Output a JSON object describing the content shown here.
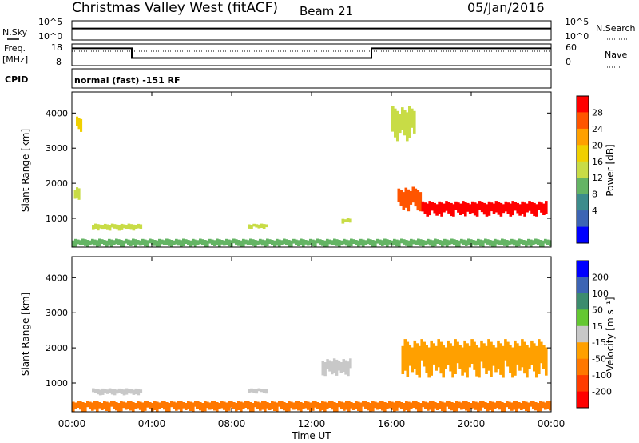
{
  "header": {
    "station": "Christmas Valley West (fitACF)",
    "beam": "Beam 21",
    "date": "05/Jan/2016"
  },
  "side_labels": {
    "nsky": "N.Sky",
    "freq_line1": "Freq.",
    "freq_line2": "[MHz]",
    "cpid": "CPID",
    "nsearch": "N.Search",
    "nave": "Nave"
  },
  "cpid_text": "normal (fast) -151 RF",
  "chart_data": [
    {
      "type": "line",
      "panel": "noise",
      "left_axis_ticks": [
        "10^5",
        "10^0"
      ],
      "right_axis_ticks": [
        "10^5",
        "10^0"
      ],
      "x": [
        0,
        1,
        2,
        3,
        4,
        5,
        6,
        7,
        8,
        9,
        10,
        11,
        12,
        13,
        14,
        15,
        16,
        17,
        18,
        19,
        20,
        21,
        22,
        23,
        24
      ],
      "series": [
        {
          "name": "N.Sky",
          "values": [
            0.6,
            0.6,
            0.6,
            0.6,
            0.6,
            0.6,
            0.6,
            0.6,
            0.6,
            0.6,
            0.6,
            0.6,
            0.6,
            0.6,
            0.6,
            0.6,
            0.6,
            0.6,
            0.6,
            0.6,
            0.6,
            0.6,
            0.6,
            0.6,
            0.6
          ]
        }
      ]
    },
    {
      "type": "line",
      "panel": "frequency",
      "left_axis_ticks": [
        "18",
        "8"
      ],
      "right_axis_ticks": [
        "60",
        "0"
      ],
      "x": [
        0,
        3,
        3,
        15,
        15,
        24
      ],
      "series": [
        {
          "name": "Freq.",
          "values": [
            16,
            16,
            11.5,
            11.5,
            16,
            16
          ]
        },
        {
          "name": "Nave",
          "values": [
            40,
            40,
            40,
            40,
            40,
            40
          ]
        }
      ]
    },
    {
      "type": "heatmap",
      "panel": "power",
      "ylabel": "Slant Range [km]",
      "yticks": [
        1000,
        2000,
        3000,
        4000
      ],
      "ylim": [
        180,
        4600
      ],
      "xlim": [
        0,
        24
      ],
      "colorbar": {
        "label": "Power [dB]",
        "ticks": [
          "28",
          "24",
          "20",
          "16",
          "12",
          "8",
          "4"
        ],
        "colors": [
          "#ff0000",
          "#ff5500",
          "#ffa000",
          "#f0d000",
          "#c8dc46",
          "#64b464",
          "#3c8c8c",
          "#3c64b4",
          "#0000ff"
        ]
      },
      "features": [
        {
          "x": [
            0.2,
            0.5
          ],
          "y": [
            3400,
            3900
          ],
          "level": 0.6
        },
        {
          "x": [
            0.1,
            0.4
          ],
          "y": [
            1500,
            1900
          ],
          "level": 0.5
        },
        {
          "x": [
            1.0,
            3.5
          ],
          "y": [
            650,
            850
          ],
          "level": 0.55
        },
        {
          "x": [
            8.8,
            9.8
          ],
          "y": [
            700,
            850
          ],
          "level": 0.5
        },
        {
          "x": [
            13.5,
            14.0
          ],
          "y": [
            850,
            1000
          ],
          "level": 0.45
        },
        {
          "x": [
            16.3,
            17.5
          ],
          "y": [
            1200,
            1900
          ],
          "level": 0.9
        },
        {
          "x": [
            17.5,
            23.8
          ],
          "y": [
            1050,
            1500
          ],
          "level": 0.95
        },
        {
          "x": [
            16.0,
            17.2
          ],
          "y": [
            3200,
            4200
          ],
          "level": 0.5
        },
        {
          "x": [
            0.0,
            24.0
          ],
          "y": [
            180,
            420
          ],
          "level": 0.35
        }
      ]
    },
    {
      "type": "heatmap",
      "panel": "velocity",
      "ylabel": "Slant Range [km]",
      "yticks": [
        1000,
        2000,
        3000,
        4000
      ],
      "ylim": [
        180,
        4600
      ],
      "xlim": [
        0,
        24
      ],
      "xticks": [
        "00:00",
        "04:00",
        "08:00",
        "12:00",
        "16:00",
        "20:00",
        "00:00"
      ],
      "xlabel": "Time UT",
      "colorbar": {
        "label": "Velocity [m s⁻¹]",
        "ticks": [
          "200",
          "100",
          "50",
          "15",
          "-15",
          "-50",
          "-100",
          "-200"
        ],
        "colors": [
          "#0000ff",
          "#3c64b4",
          "#3c8c6e",
          "#64c832",
          "#c8c8c8",
          "#ffa000",
          "#ff7800",
          "#ff3c00",
          "#ff0000"
        ]
      },
      "features": [
        {
          "x": [
            1.0,
            3.5
          ],
          "y": [
            650,
            850
          ],
          "level": "15"
        },
        {
          "x": [
            8.8,
            9.8
          ],
          "y": [
            700,
            850
          ],
          "level": "15"
        },
        {
          "x": [
            16.5,
            23.8
          ],
          "y": [
            1150,
            2250
          ],
          "level": "-15"
        },
        {
          "x": [
            12.5,
            14.0
          ],
          "y": [
            1200,
            1700
          ],
          "level": "15"
        },
        {
          "x": [
            0.0,
            24.0
          ],
          "y": [
            180,
            500
          ],
          "level": "-50"
        }
      ]
    }
  ]
}
